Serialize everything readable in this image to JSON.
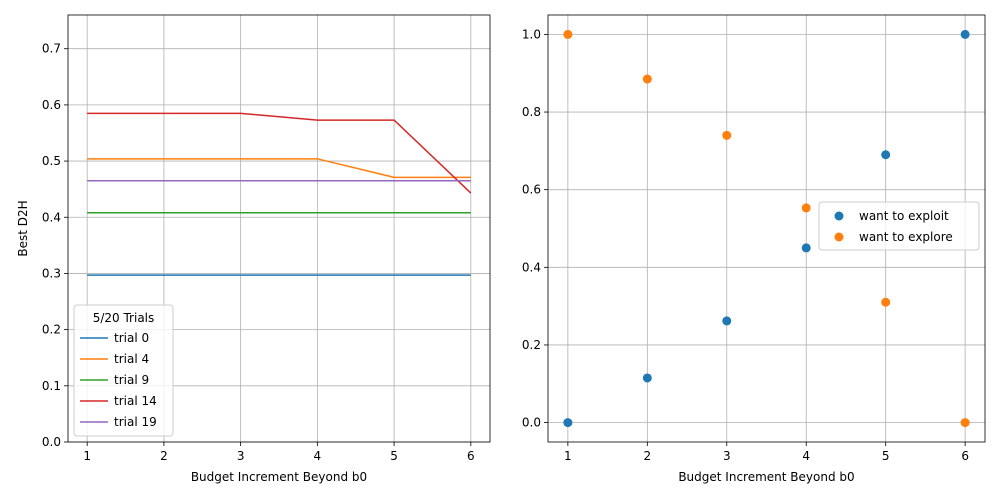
{
  "chart_data": [
    {
      "type": "line",
      "xlabel": "Budget Increment Beyond b0",
      "ylabel": "Best D2H",
      "xlim": [
        0.75,
        6.25
      ],
      "ylim": [
        0.0,
        0.76
      ],
      "xticks": [
        1,
        2,
        3,
        4,
        5,
        6
      ],
      "xtick_labels": [
        "1",
        "2",
        "3",
        "4",
        "5",
        "6"
      ],
      "yticks": [
        0.0,
        0.1,
        0.2,
        0.3,
        0.4,
        0.5,
        0.6,
        0.7
      ],
      "ytick_labels": [
        "0.0",
        "0.1",
        "0.2",
        "0.3",
        "0.4",
        "0.5",
        "0.6",
        "0.7"
      ],
      "grid": true,
      "legend": {
        "title": "5/20 Trials",
        "position": "lower-left"
      },
      "x": [
        1,
        2,
        3,
        4,
        5,
        6
      ],
      "series": [
        {
          "name": "trial 0",
          "color": "#1f77b4",
          "values": [
            0.297,
            0.297,
            0.297,
            0.297,
            0.297,
            0.297
          ]
        },
        {
          "name": "trial 4",
          "color": "#ff7f0e",
          "values": [
            0.504,
            0.504,
            0.504,
            0.504,
            0.471,
            0.471
          ]
        },
        {
          "name": "trial 9",
          "color": "#2ca02c",
          "values": [
            0.408,
            0.408,
            0.408,
            0.408,
            0.408,
            0.408
          ]
        },
        {
          "name": "trial 14",
          "color": "#d62728",
          "values": [
            0.585,
            0.585,
            0.585,
            0.573,
            0.573,
            0.443
          ]
        },
        {
          "name": "trial 19",
          "color": "#9467bd",
          "values": [
            0.465,
            0.465,
            0.465,
            0.465,
            0.465,
            0.465
          ]
        }
      ]
    },
    {
      "type": "scatter",
      "xlabel": "Budget Increment Beyond b0",
      "ylabel": "",
      "xlim": [
        0.75,
        6.25
      ],
      "ylim": [
        -0.05,
        1.05
      ],
      "xticks": [
        1,
        2,
        3,
        4,
        5,
        6
      ],
      "xtick_labels": [
        "1",
        "2",
        "3",
        "4",
        "5",
        "6"
      ],
      "yticks": [
        0.0,
        0.2,
        0.4,
        0.6,
        0.8,
        1.0
      ],
      "ytick_labels": [
        "0.0",
        "0.2",
        "0.4",
        "0.6",
        "0.8",
        "1.0"
      ],
      "grid": true,
      "legend": {
        "position": "center-right"
      },
      "series": [
        {
          "name": "want to exploit",
          "color": "#1f77b4",
          "x": [
            1,
            2,
            3,
            4,
            5,
            6
          ],
          "values": [
            0.0,
            0.115,
            0.262,
            0.45,
            0.69,
            1.0
          ]
        },
        {
          "name": "want to explore",
          "color": "#ff7f0e",
          "x": [
            1,
            2,
            3,
            4,
            5,
            6
          ],
          "values": [
            1.0,
            0.885,
            0.74,
            0.553,
            0.31,
            0.0
          ]
        }
      ]
    }
  ]
}
